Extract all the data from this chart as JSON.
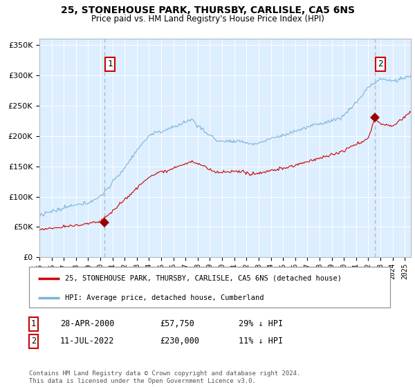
{
  "title1": "25, STONEHOUSE PARK, THURSBY, CARLISLE, CA5 6NS",
  "title2": "Price paid vs. HM Land Registry's House Price Index (HPI)",
  "bg_color": "#ddeeff",
  "hpi_color": "#7ab4d8",
  "price_color": "#cc0000",
  "marker_color": "#990000",
  "vline_color": "#aabbcc",
  "sale1_date_num": 2000.32,
  "sale1_price": 57750,
  "sale2_date_num": 2022.53,
  "sale2_price": 230000,
  "ylim": [
    0,
    360000
  ],
  "xlim": [
    1995.0,
    2025.5
  ],
  "yticks": [
    0,
    50000,
    100000,
    150000,
    200000,
    250000,
    300000,
    350000
  ],
  "xticks": [
    1995,
    1996,
    1997,
    1998,
    1999,
    2000,
    2001,
    2002,
    2003,
    2004,
    2005,
    2006,
    2007,
    2008,
    2009,
    2010,
    2011,
    2012,
    2013,
    2014,
    2015,
    2016,
    2017,
    2018,
    2019,
    2020,
    2021,
    2022,
    2023,
    2024,
    2025
  ],
  "legend1": "25, STONEHOUSE PARK, THURSBY, CARLISLE, CA5 6NS (detached house)",
  "legend2": "HPI: Average price, detached house, Cumberland",
  "ann1_date": "28-APR-2000",
  "ann1_price_str": "£57,750",
  "ann1_pct": "29% ↓ HPI",
  "ann2_date": "11-JUL-2022",
  "ann2_price_str": "£230,000",
  "ann2_pct": "11% ↓ HPI",
  "footnote": "Contains HM Land Registry data © Crown copyright and database right 2024.\nThis data is licensed under the Open Government Licence v3.0."
}
